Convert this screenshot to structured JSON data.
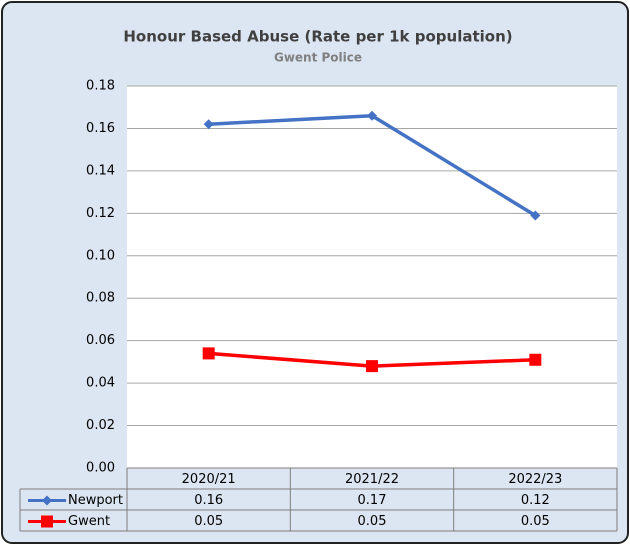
{
  "chart_data": {
    "type": "line",
    "title": "Honour Based Abuse (Rate per 1k population)",
    "subtitle": "Gwent Police",
    "categories": [
      "2020/21",
      "2021/22",
      "2022/23"
    ],
    "series": [
      {
        "name": "Newport",
        "color": "#4472c4",
        "marker": "diamond",
        "values": [
          0.162,
          0.166,
          0.119
        ],
        "value_labels": [
          "0.16",
          "0.17",
          "0.12"
        ]
      },
      {
        "name": "Gwent",
        "color": "#ff0000",
        "marker": "square",
        "values": [
          0.054,
          0.048,
          0.051
        ],
        "value_labels": [
          "0.05",
          "0.05",
          "0.05"
        ]
      }
    ],
    "ylim": [
      0,
      0.18
    ],
    "yticks": [
      {
        "value": 0,
        "label": "0.00"
      },
      0.02,
      0.04,
      0.06,
      0.08,
      {
        "value": 0.1,
        "label": "0.10"
      },
      0.12,
      0.14,
      0.16,
      0.18
    ],
    "grid": true
  }
}
